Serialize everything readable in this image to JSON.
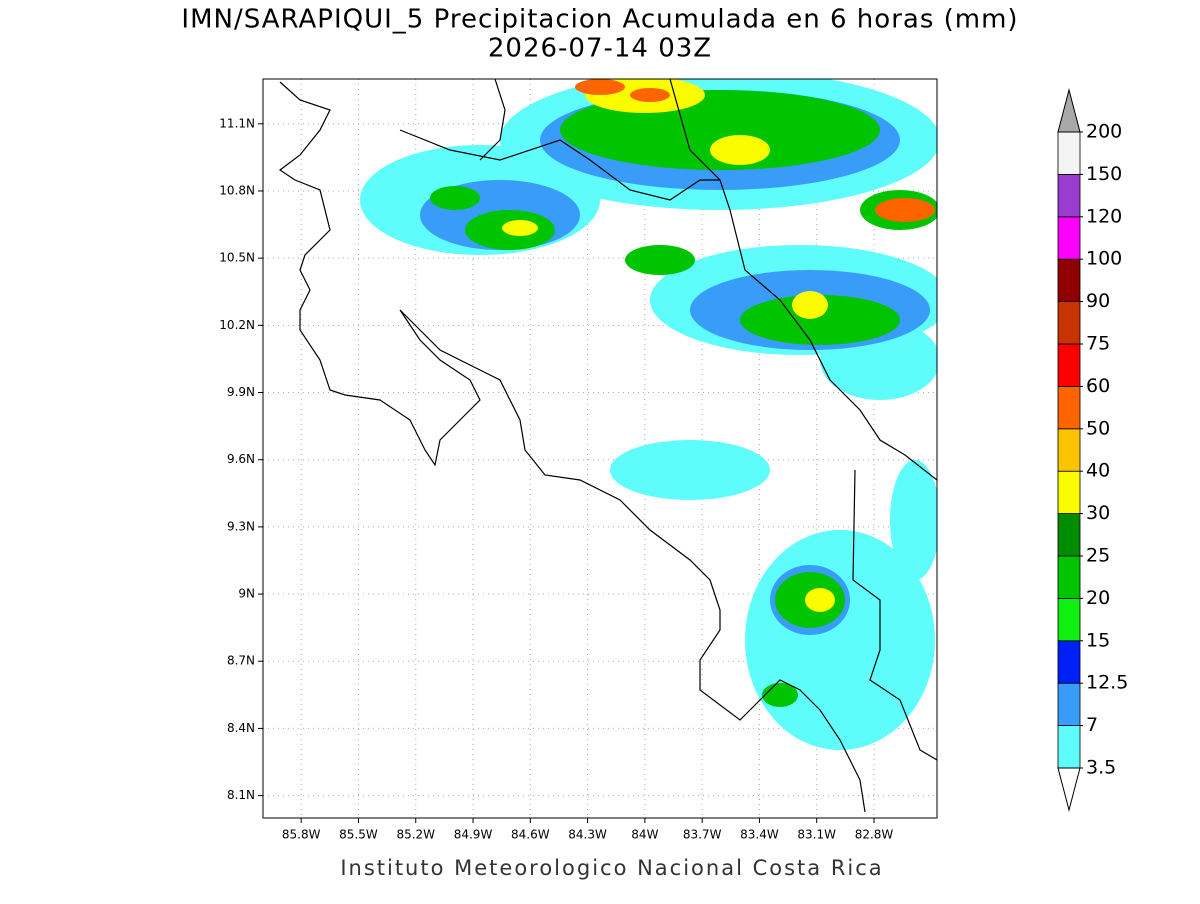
{
  "title": "IMN/SARAPIQUI_5 Precipitacion Acumulada en 6 horas (mm)",
  "subtitle": "2026-07-14 03Z",
  "footer": "Instituto Meteorologico Nacional Costa Rica",
  "map": {
    "xlim": [
      -86.0,
      -82.47
    ],
    "ylim": [
      8.0,
      11.3
    ],
    "xticks": [
      {
        "value": -85.8,
        "label": "85.8W"
      },
      {
        "value": -85.5,
        "label": "85.5W"
      },
      {
        "value": -85.2,
        "label": "85.2W"
      },
      {
        "value": -84.9,
        "label": "84.9W"
      },
      {
        "value": -84.6,
        "label": "84.6W"
      },
      {
        "value": -84.3,
        "label": "84.3W"
      },
      {
        "value": -84.0,
        "label": "84W"
      },
      {
        "value": -83.7,
        "label": "83.7W"
      },
      {
        "value": -83.4,
        "label": "83.4W"
      },
      {
        "value": -83.1,
        "label": "83.1W"
      },
      {
        "value": -82.8,
        "label": "82.8W"
      }
    ],
    "yticks": [
      {
        "value": 8.1,
        "label": "8.1N"
      },
      {
        "value": 8.4,
        "label": "8.4N"
      },
      {
        "value": 8.7,
        "label": "8.7N"
      },
      {
        "value": 9.0,
        "label": "9N"
      },
      {
        "value": 9.3,
        "label": "9.3N"
      },
      {
        "value": 9.6,
        "label": "9.6N"
      },
      {
        "value": 9.9,
        "label": "9.9N"
      },
      {
        "value": 10.2,
        "label": "10.2N"
      },
      {
        "value": 10.5,
        "label": "10.5N"
      },
      {
        "value": 10.8,
        "label": "10.8N"
      },
      {
        "value": 11.1,
        "label": "11.1N"
      }
    ],
    "grid": true
  },
  "colorbar": {
    "levels": [
      3.5,
      7,
      12.5,
      15,
      20,
      25,
      30,
      40,
      50,
      60,
      75,
      90,
      100,
      120,
      150,
      200
    ],
    "colors": [
      "#5ffcfc",
      "#3a9cf9",
      "#0020f8",
      "#10f010",
      "#00c400",
      "#008c00",
      "#fcfc00",
      "#fcc400",
      "#fc6400",
      "#fc0000",
      "#c83400",
      "#900000",
      "#fc00fc",
      "#9a3cd0",
      "#f4f4f4"
    ],
    "over_color": "#a8a8a8",
    "under_color": "#ffffff"
  }
}
